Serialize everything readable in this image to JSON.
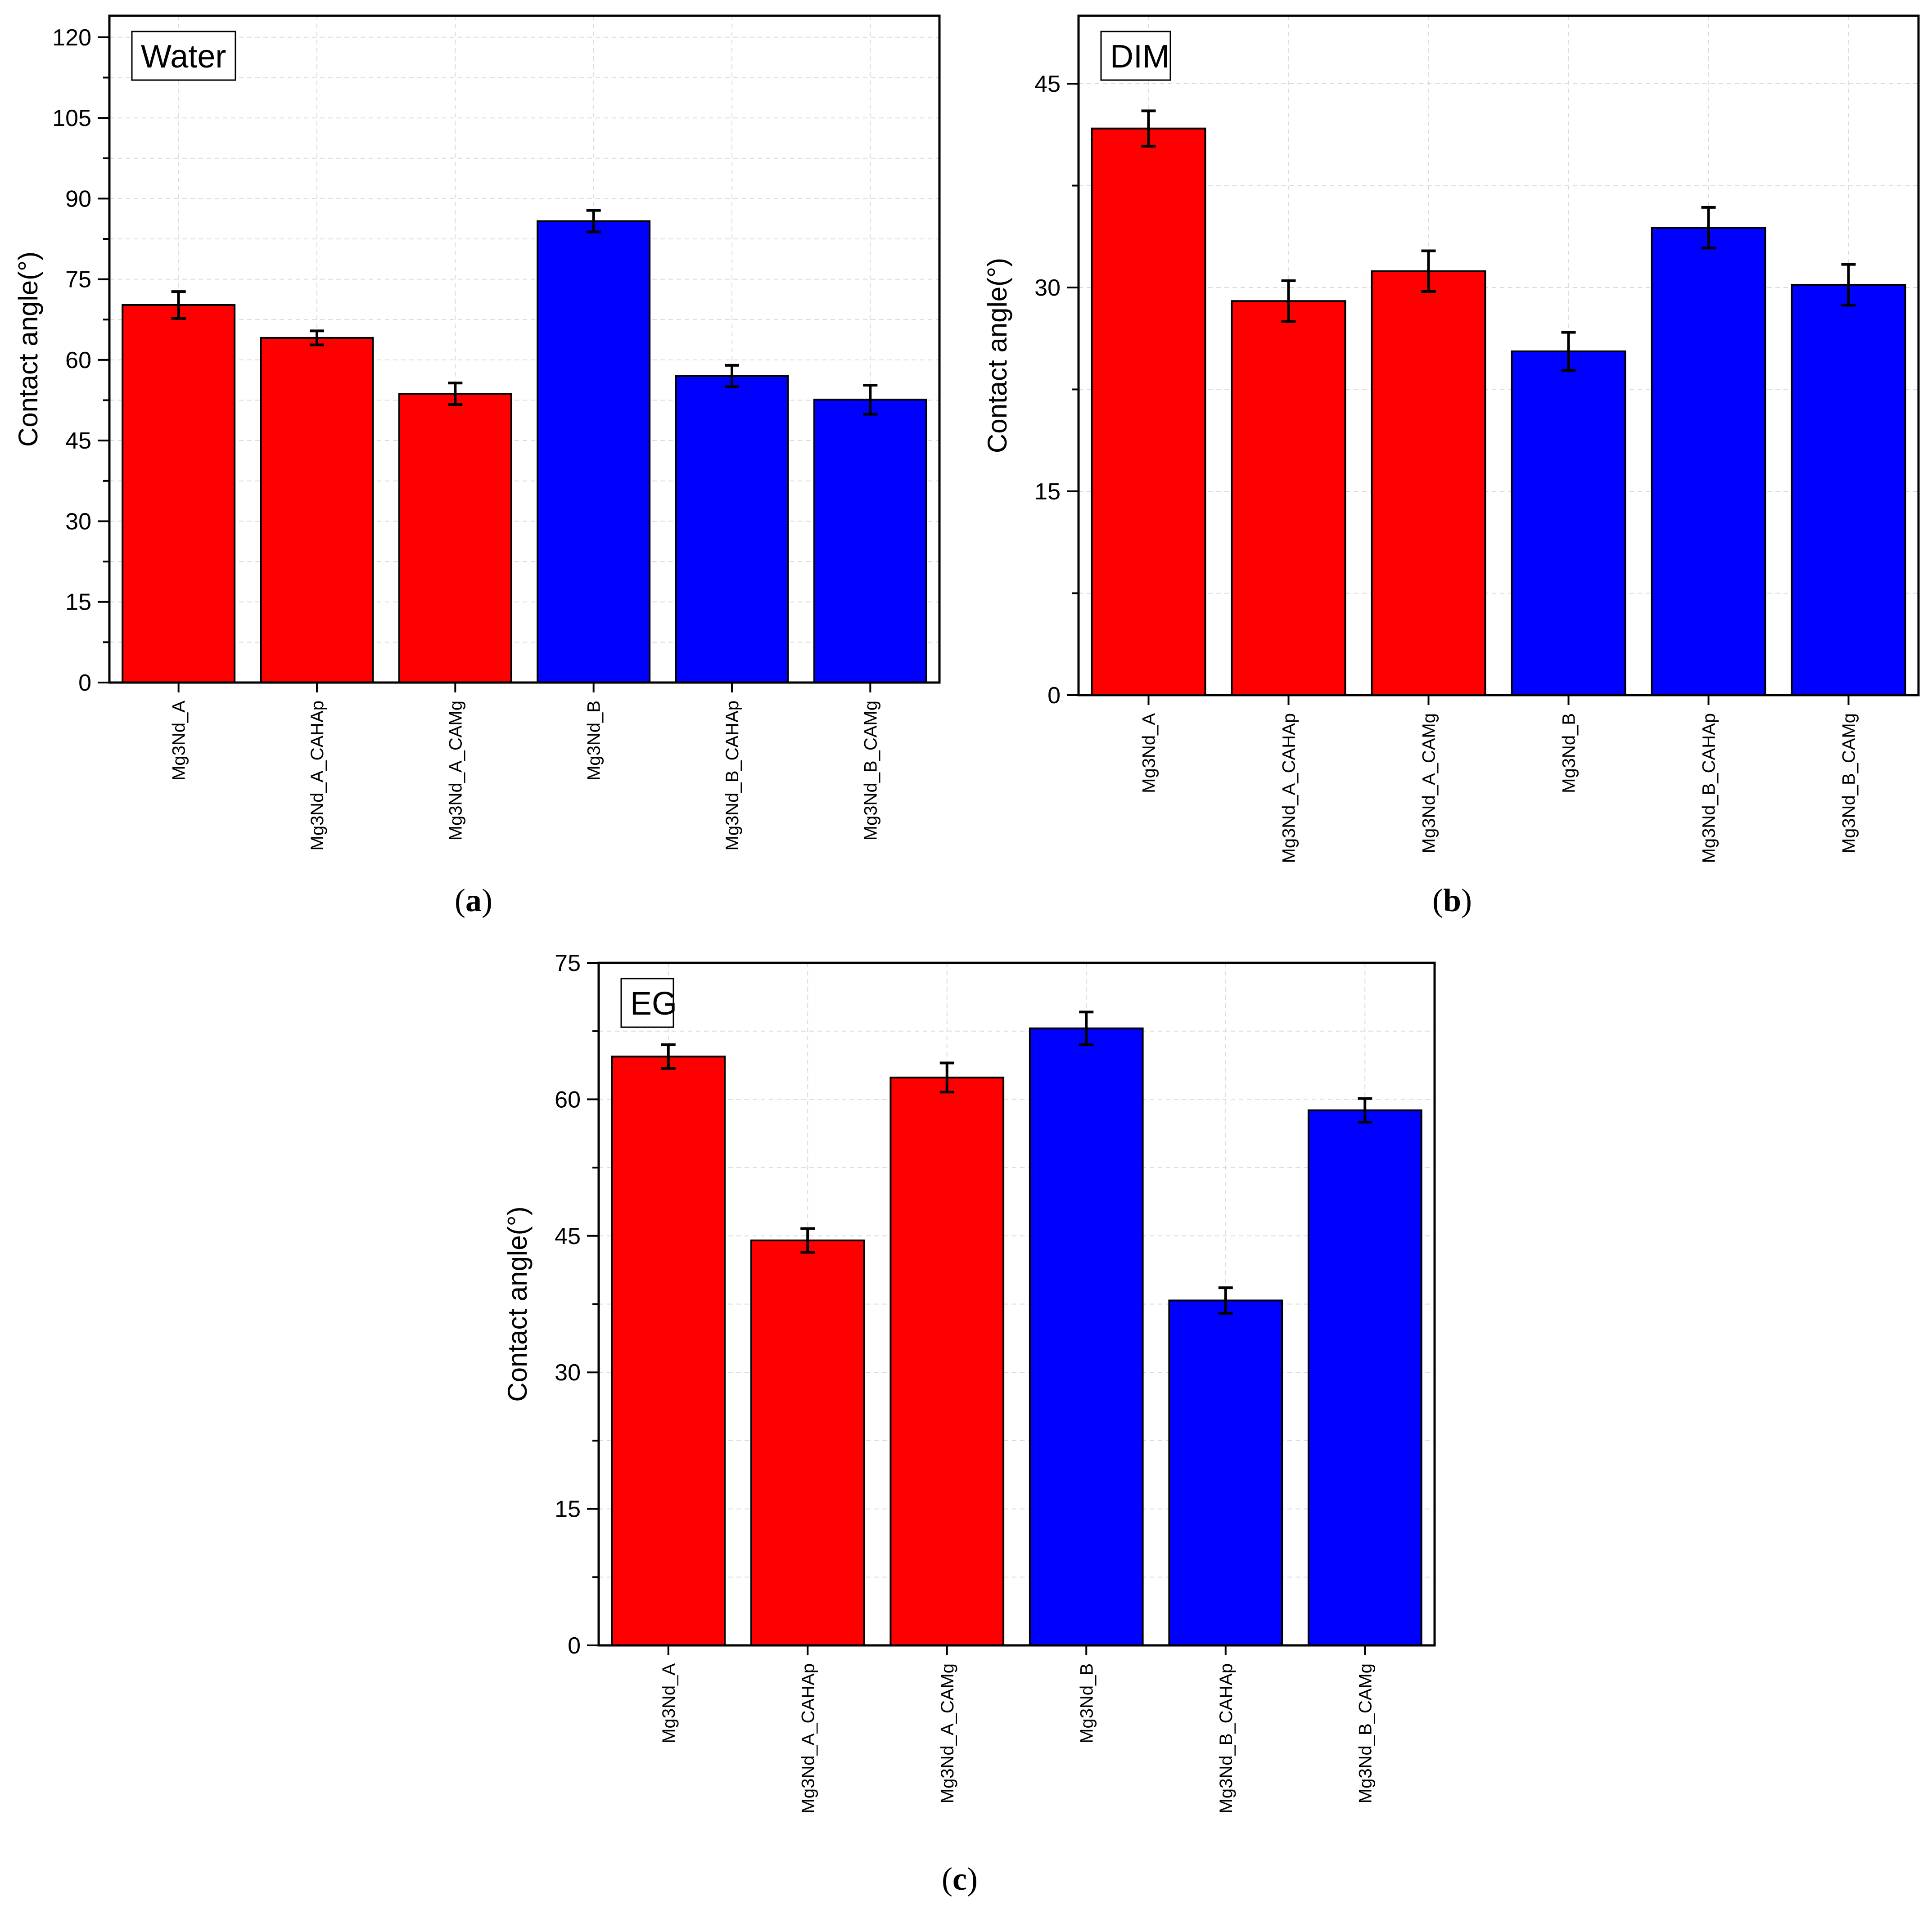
{
  "figure": {
    "panel_labels": [
      "(a)",
      "(b)",
      "(c)"
    ]
  },
  "colors": {
    "group_a": "#ff0000",
    "group_b": "#0000ff",
    "axis": "#000000",
    "grid": "#dcdcdc"
  },
  "chart_data": [
    {
      "id": "a",
      "type": "bar",
      "title": "Water",
      "panel_label": "(a)",
      "xlabel": "",
      "ylabel": "Contact angle(°)",
      "categories": [
        "Mg3Nd_A",
        "Mg3Nd_A_CAHAp",
        "Mg3Nd_A_CAMg",
        "Mg3Nd_B",
        "Mg3Nd_B_CAHAp",
        "Mg3Nd_B_CAMg"
      ],
      "values": [
        70.2,
        64.1,
        53.7,
        85.8,
        57.0,
        52.6
      ],
      "errors": [
        2.5,
        1.3,
        2.0,
        2.0,
        2.0,
        2.7
      ],
      "bar_groups": [
        "A",
        "A",
        "A",
        "B",
        "B",
        "B"
      ],
      "ylim": [
        0,
        124
      ],
      "yticks": [
        0,
        15,
        30,
        45,
        60,
        75,
        90,
        105,
        120
      ],
      "yminor_step": 7.5,
      "grid": true
    },
    {
      "id": "b",
      "type": "bar",
      "title": "DIM",
      "panel_label": "(b)",
      "xlabel": "",
      "ylabel": "Contact angle(°)",
      "categories": [
        "Mg3Nd_A",
        "Mg3Nd_A_CAHAp",
        "Mg3Nd_A_CAMg",
        "Mg3Nd_B",
        "Mg3Nd_B_CAHAp",
        "Mg3Nd_B_CAMg"
      ],
      "values": [
        41.7,
        29.0,
        31.2,
        25.3,
        34.4,
        30.2
      ],
      "errors": [
        1.3,
        1.5,
        1.5,
        1.4,
        1.5,
        1.5
      ],
      "bar_groups": [
        "A",
        "A",
        "A",
        "B",
        "B",
        "B"
      ],
      "ylim": [
        0,
        50
      ],
      "yticks": [
        0,
        15,
        30,
        45
      ],
      "yminor_step": 7.5,
      "grid": true
    },
    {
      "id": "c",
      "type": "bar",
      "title": "EG",
      "panel_label": "(c)",
      "xlabel": "",
      "ylabel": "Contact angle(°)",
      "categories": [
        "Mg3Nd_A",
        "Mg3Nd_A_CAHAp",
        "Mg3Nd_A_CAMg",
        "Mg3Nd_B",
        "Mg3Nd_B_CAHAp",
        "Mg3Nd_B_CAMg"
      ],
      "values": [
        64.7,
        44.5,
        62.4,
        67.8,
        37.9,
        58.8
      ],
      "errors": [
        1.3,
        1.3,
        1.6,
        1.8,
        1.4,
        1.3
      ],
      "bar_groups": [
        "A",
        "A",
        "A",
        "B",
        "B",
        "B"
      ],
      "ylim": [
        0,
        75
      ],
      "yticks": [
        0,
        15,
        30,
        45,
        60,
        75
      ],
      "yminor_step": 7.5,
      "grid": true
    }
  ]
}
